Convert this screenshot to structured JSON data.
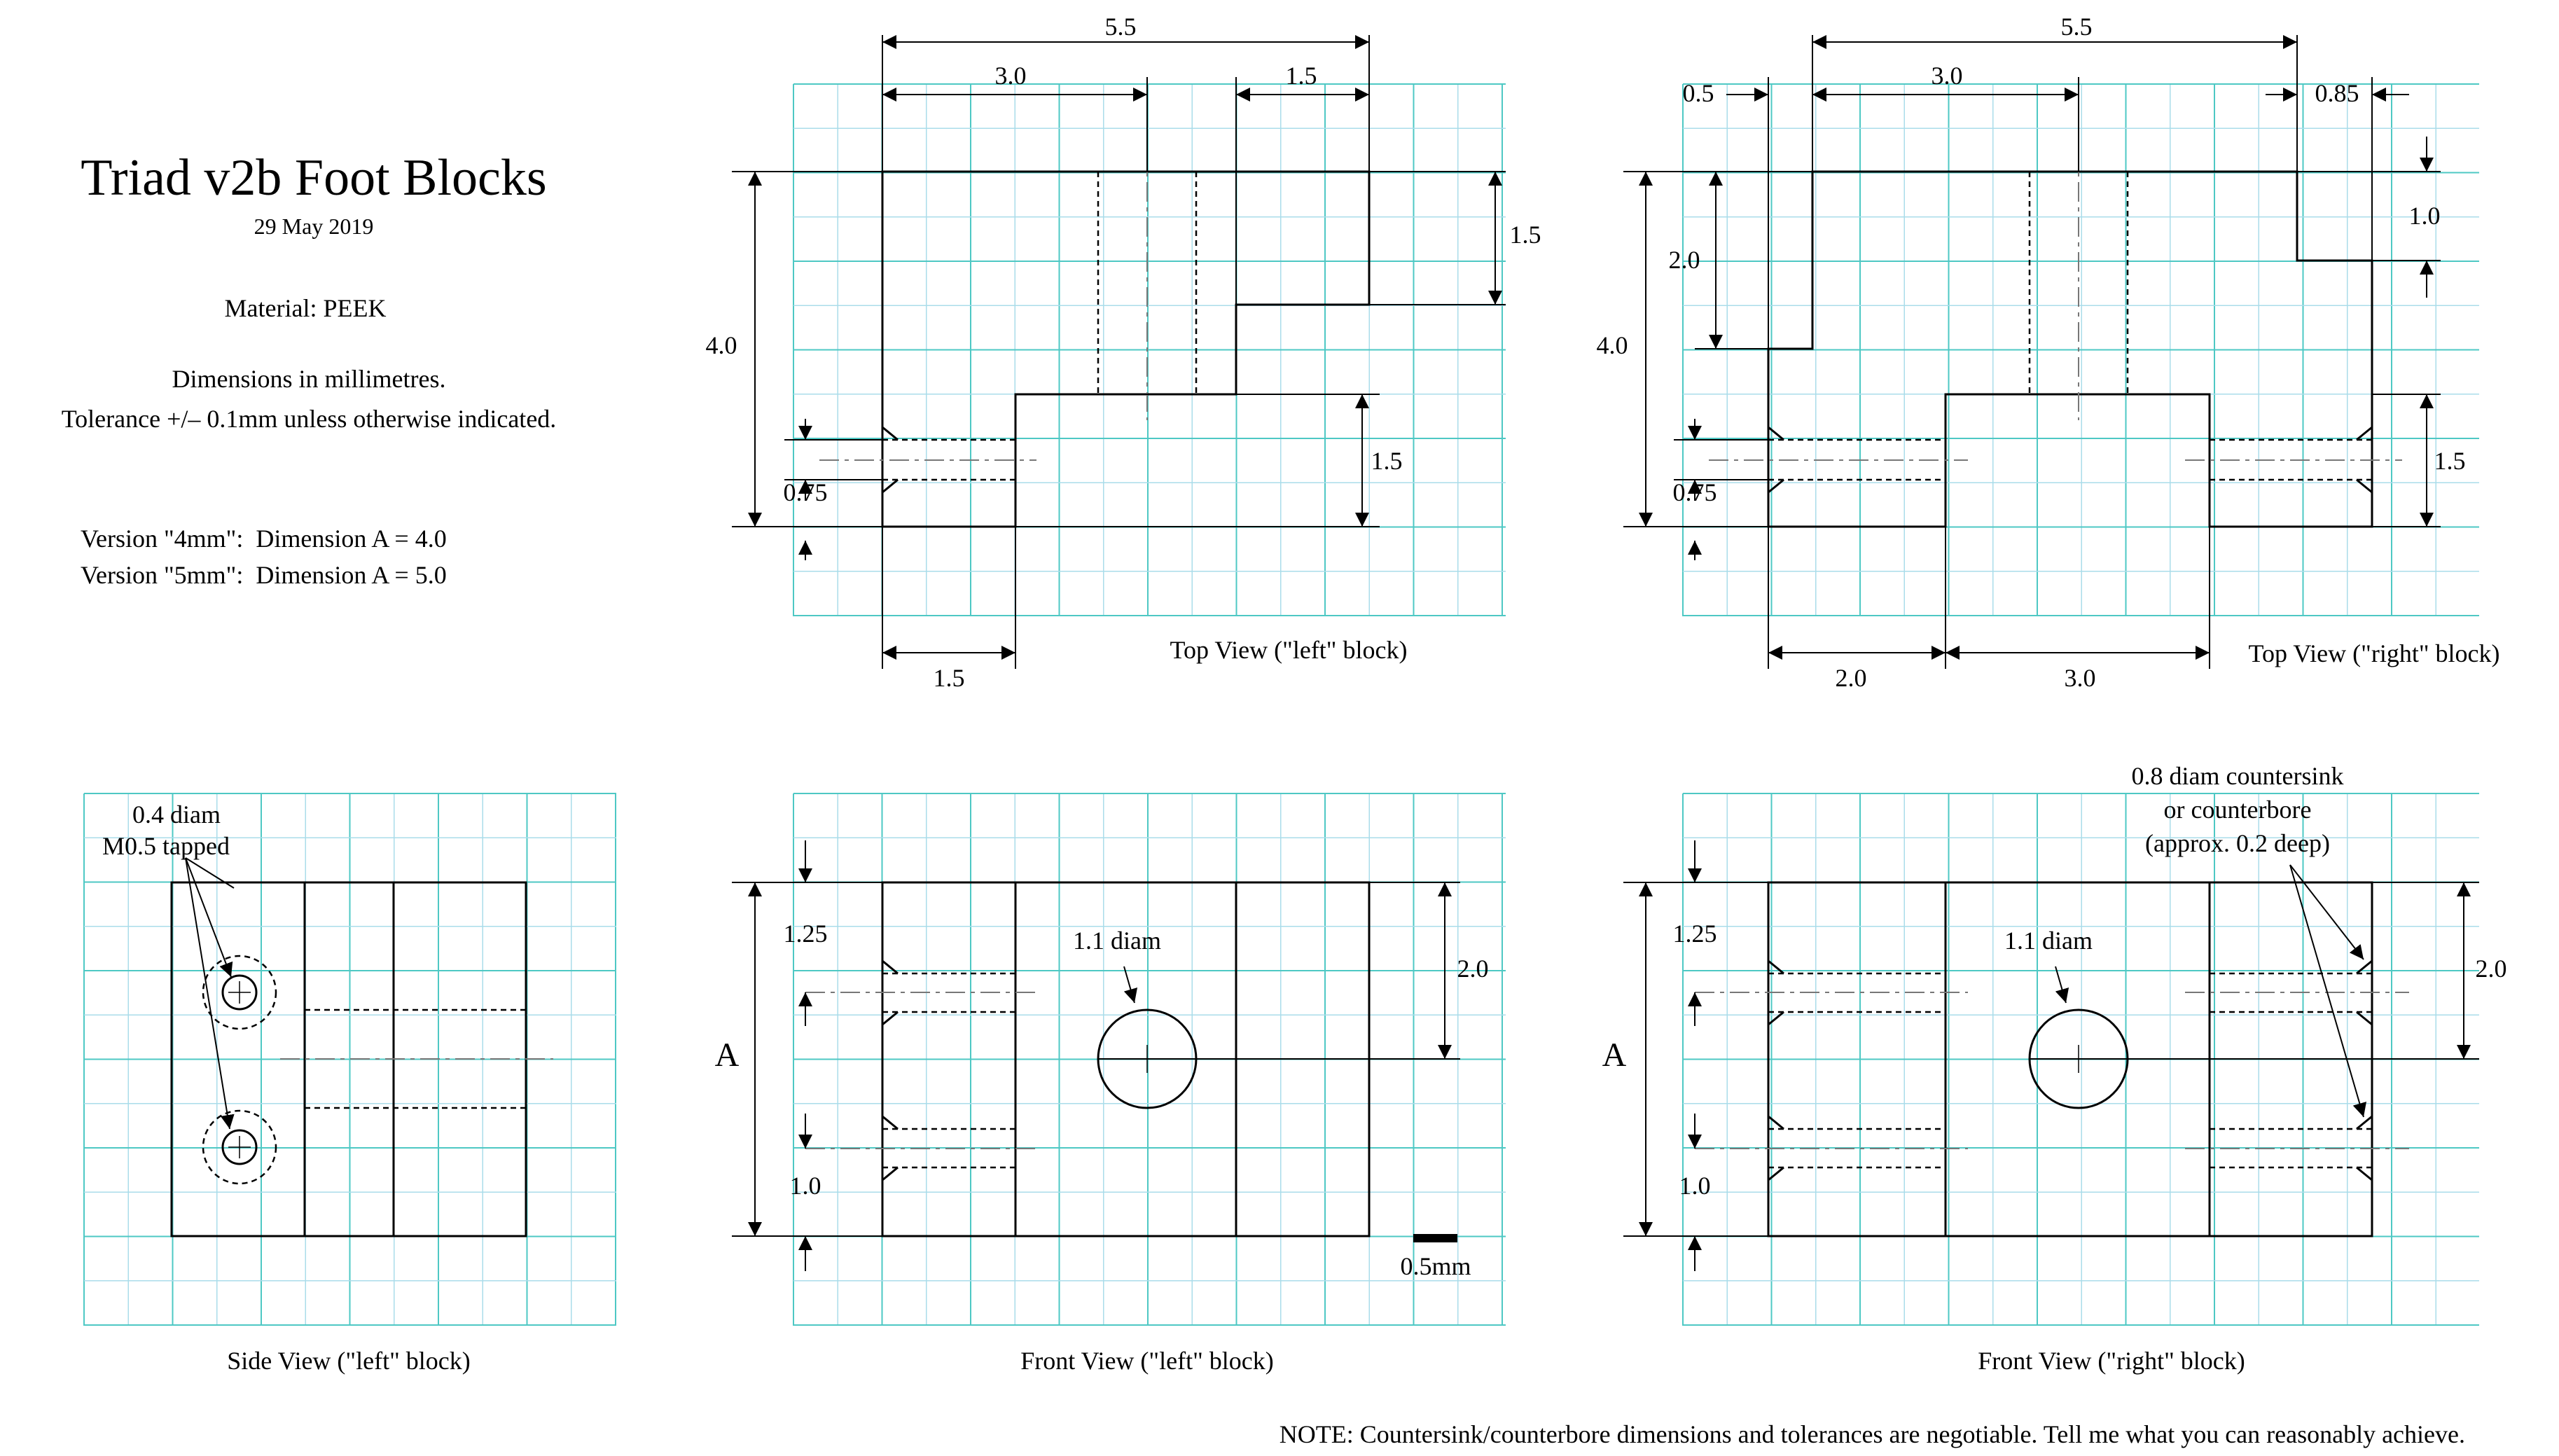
{
  "title": "Triad v2b Foot Blocks",
  "date": "29 May 2019",
  "material": "Material: PEEK",
  "dims_note": "Dimensions in millimetres.",
  "tolerance_note": "Tolerance +/– 0.1mm unless otherwise indicated.",
  "version_4mm": "Version \"4mm\":  Dimension A = 4.0",
  "version_5mm": "Version \"5mm\":  Dimension A = 5.0",
  "colors": {
    "grid_minor": "#aadcea",
    "grid_major": "#4ec8c4",
    "line": "#000000"
  },
  "views": {
    "top_left": {
      "caption": "Top View (\"left\" block)",
      "dim_overall": "5.5",
      "dim_left": "3.0",
      "dim_right": "1.5",
      "dim_height": "4.0",
      "dim_right_step": "1.5",
      "dim_low_step": "1.5",
      "dim_hole": "0.75",
      "dim_bottom": "1.5"
    },
    "top_right": {
      "caption": "Top View (\"right\" block)",
      "dim_overall": "5.5",
      "dim_left_offset": "0.5",
      "dim_mid": "3.0",
      "dim_right_offset": "0.85",
      "dim_height": "4.0",
      "dim_left_step": "2.0",
      "dim_right_step": "1.0",
      "dim_low_step": "1.5",
      "dim_hole": "0.75",
      "dim_bottom_left": "2.0",
      "dim_bottom_mid": "3.0"
    },
    "side_left": {
      "caption": "Side View (\"left\" block)",
      "hole_note_1": "0.4 diam",
      "hole_note_2": "M0.5 tapped"
    },
    "front_left": {
      "caption": "Front View (\"left\" block)",
      "dim_top_hole": "1.25",
      "dim_bottom_hole": "1.0",
      "dim_A": "A",
      "dim_center": "2.0",
      "hole_label": "1.1 diam",
      "scale_label": "0.5mm"
    },
    "front_right": {
      "caption": "Front View (\"right\" block)",
      "dim_top_hole": "1.25",
      "dim_bottom_hole": "1.0",
      "dim_A": "A",
      "dim_center": "2.0",
      "hole_label": "1.1 diam",
      "cs_note_1": "0.8 diam countersink",
      "cs_note_2": "or counterbore",
      "cs_note_3": "(approx. 0.2 deep)"
    }
  },
  "footer_note": "NOTE: Countersink/counterbore dimensions and tolerances are negotiable. Tell me what you can reasonably achieve."
}
